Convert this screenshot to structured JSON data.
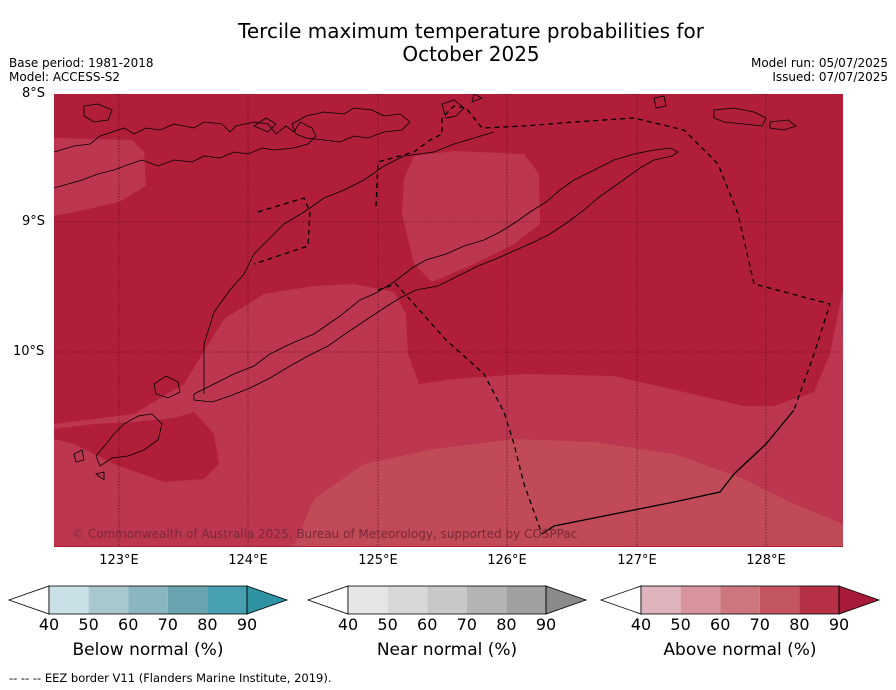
{
  "title_line1": "Tercile maximum temperature probabilities for",
  "title_line2": "October 2025",
  "meta_left": {
    "base_period": "Base period: 1981-2018",
    "model": "Model: ACCESS-S2"
  },
  "meta_right": {
    "model_run": "Model run: 05/07/2025",
    "issued": "Issued: 07/07/2025"
  },
  "lat_labels": [
    "8°S",
    "9°S",
    "10°S"
  ],
  "lon_labels": [
    "123°E",
    "124°E",
    "125°E",
    "126°E",
    "127°E",
    "128°E"
  ],
  "copyright": "© Commonwealth of Australia 2025, Bureau of Meteorology, supported by COSPPac",
  "colorbars": [
    {
      "label": "Below normal (%)",
      "ticks": [
        "40",
        "50",
        "60",
        "70",
        "80",
        "90"
      ],
      "colors": [
        "#ffffff",
        "#c8e0e6",
        "#a8c8cd",
        "#8ab6bf",
        "#69a4b0",
        "#47a0b0",
        "#2e93a3"
      ]
    },
    {
      "label": "Near normal (%)",
      "ticks": [
        "40",
        "50",
        "60",
        "70",
        "80",
        "90"
      ],
      "colors": [
        "#ffffff",
        "#e6e6e6",
        "#d8d8d8",
        "#c8c8c8",
        "#b4b4b4",
        "#a0a0a0",
        "#8a8a8a"
      ]
    },
    {
      "label": "Above normal (%)",
      "ticks": [
        "40",
        "50",
        "60",
        "70",
        "80",
        "90"
      ],
      "colors": [
        "#ffffff",
        "#e0b4bc",
        "#d8949e",
        "#cc7680",
        "#c45662",
        "#b63048",
        "#a81a3a"
      ]
    }
  ],
  "footer": "--  --  -- EEZ border V11 (Flanders Marine Institute, 2019).",
  "map_colors": {
    "above_90": "#b11e3a",
    "above_80": "#bc3650",
    "above_70": "#c04a58",
    "land": "#000000"
  }
}
